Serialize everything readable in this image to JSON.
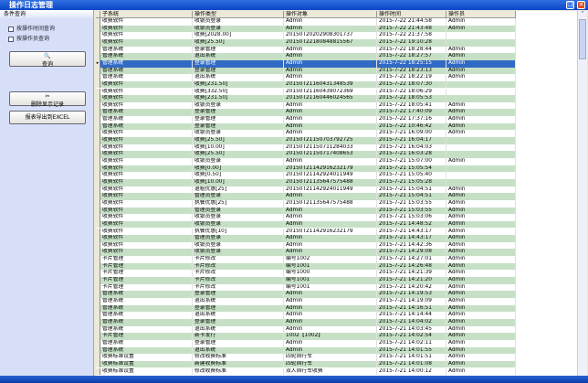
{
  "window": {
    "title": "操作日志管理",
    "restore_icon": "restore-icon",
    "close_icon": "close-icon"
  },
  "left": {
    "header": "条件查询",
    "filter_time": "按操作时间查询",
    "filter_operator": "按操作员查询",
    "query": "查询",
    "delete": "删除显示记录",
    "export": "报表导出到EXCEL"
  },
  "table": {
    "columns": [
      "子系统",
      "操作类型",
      "操作对象",
      "操作时间",
      "操作员"
    ],
    "selected_index": 6,
    "rows": [
      [
        "收费软件",
        "收银员登录",
        "Admin",
        "2015-7-22 21:44:58",
        "Admin"
      ],
      [
        "收费软件",
        "收银员登录",
        "Admin",
        "2015-7-22 21:43:48",
        "Admin"
      ],
      [
        "收费软件",
        "收费[2028.00]",
        "20150T20202908301737",
        "2015-7-22 21:37:58",
        ""
      ],
      [
        "收费软件",
        "收费[25.50]",
        "20150T22180848815567",
        "2015-7-22 19:10:28",
        ""
      ],
      [
        "管理系统",
        "登录管理",
        "Admin",
        "2015-7-22 18:28:44",
        "Admin"
      ],
      [
        "管理系统",
        "退出系统",
        "Admin",
        "2015-7-22 18:27:57",
        "Admin"
      ],
      [
        "管理系统",
        "登录管理",
        "Admin",
        "2015-7-22 18:25:15",
        "Admin"
      ],
      [
        "管理系统",
        "登录管理",
        "Admin",
        "2015-7-22 18:23:13",
        "Admin"
      ],
      [
        "管理系统",
        "退出系统",
        "Admin",
        "2015-7-22 18:22:19",
        "Admin"
      ],
      [
        "收费软件",
        "收费[231.50]",
        "20150T21160431348539",
        "2015-7-22 18:07:30",
        ""
      ],
      [
        "收费软件",
        "收费[332.50]",
        "20150T21160439072369",
        "2015-7-22 18:06:29",
        ""
      ],
      [
        "收费软件",
        "收费[231.50]",
        "20150T21160446024565",
        "2015-7-22 18:05:53",
        ""
      ],
      [
        "收费软件",
        "收银员登录",
        "Admin",
        "2015-7-22 18:05:41",
        "Admin"
      ],
      [
        "管理系统",
        "登录管理",
        "Admin",
        "2015-7-22 17:40:09",
        "Admin"
      ],
      [
        "管理系统",
        "登录管理",
        "Admin",
        "2015-7-22 17:37:16",
        "Admin"
      ],
      [
        "管理系统",
        "登录管理",
        "Admin",
        "2015-7-22 10:46:42",
        "Admin"
      ],
      [
        "收费软件",
        "收银员登录",
        "Admin",
        "2015-7-21 16:09:00",
        "Admin"
      ],
      [
        "收费软件",
        "收费[25.50]",
        "20150T21150703792725",
        "2015-7-21 16:04:17",
        ""
      ],
      [
        "收费软件",
        "收费[10.00]",
        "20150T21150711284033",
        "2015-7-21 16:04:03",
        ""
      ],
      [
        "收费软件",
        "收费[25.50]",
        "20150T21150717408653",
        "2015-7-21 16:03:28",
        ""
      ],
      [
        "收费软件",
        "收银员登录",
        "Admin",
        "2015-7-21 15:07:00",
        "Admin"
      ],
      [
        "收费软件",
        "收费[0.00]",
        "20150T21142916232179",
        "2015-7-21 15:05:54",
        ""
      ],
      [
        "收费软件",
        "收费[0.50]",
        "20150T21142924011949",
        "2015-7-21 15:05:40",
        ""
      ],
      [
        "收费软件",
        "收费[10.00]",
        "20150T21135647575488",
        "2015-7-21 15:05:28",
        ""
      ],
      [
        "收费软件",
        "退租优惠[25]",
        "20150T21142924011949",
        "2015-7-21 15:04:51",
        "Admin"
      ],
      [
        "收费软件",
        "管理员登录",
        "Admin",
        "2015-7-21 15:04:51",
        "Admin"
      ],
      [
        "收费软件",
        "执餐优惠[25]",
        "20150T21135647575488",
        "2015-7-21 15:03:55",
        "Admin"
      ],
      [
        "收费软件",
        "管理员登录",
        "Admin",
        "2015-7-21 15:03:55",
        "Admin"
      ],
      [
        "收费软件",
        "收银员登录",
        "Admin",
        "2015-7-21 15:03:06",
        "Admin"
      ],
      [
        "收费软件",
        "收银员登录",
        "Admin",
        "2015-7-21 14:48:52",
        "Admin"
      ],
      [
        "收费软件",
        "执餐优惠[10]",
        "20150T21142916232179",
        "2015-7-21 14:43:17",
        "Admin"
      ],
      [
        "收费软件",
        "管理员登录",
        "Admin",
        "2015-7-21 14:43:17",
        "Admin"
      ],
      [
        "收费软件",
        "收银员登录",
        "Admin",
        "2015-7-21 14:42:36",
        "Admin"
      ],
      [
        "收费软件",
        "收银员登录",
        "Admin",
        "2015-7-21 14:29:08",
        "Admin"
      ],
      [
        "卡片管理",
        "卡片修改",
        "编号1002",
        "2015-7-21 14:27:01",
        "Admin"
      ],
      [
        "卡片管理",
        "卡片修改",
        "编号1001",
        "2015-7-21 14:26:48",
        "Admin"
      ],
      [
        "卡片管理",
        "卡片修改",
        "编号1000",
        "2015-7-21 14:21:39",
        "Admin"
      ],
      [
        "卡片管理",
        "卡片修改",
        "编号1001",
        "2015-7-21 14:21:20",
        "Admin"
      ],
      [
        "卡片管理",
        "卡片修改",
        "编号1001",
        "2015-7-21 14:20:42",
        "Admin"
      ],
      [
        "管理系统",
        "登录管理",
        "Admin",
        "2015-7-21 14:19:53",
        "Admin"
      ],
      [
        "管理系统",
        "退出系统",
        "Admin",
        "2015-7-21 14:19:09",
        "Admin"
      ],
      [
        "管理系统",
        "登录管理",
        "Admin",
        "2015-7-21 14:16:51",
        "Admin"
      ],
      [
        "管理系统",
        "退出系统",
        "Admin",
        "2015-7-21 14:14:44",
        "Admin"
      ],
      [
        "管理系统",
        "登录管理",
        "Admin",
        "2015-7-21 14:04:02",
        "Admin"
      ],
      [
        "管理系统",
        "退出系统",
        "Admin",
        "2015-7-21 14:03:45",
        "Admin"
      ],
      [
        "卡片管理",
        "新卡发行",
        "1002【1002】",
        "2015-7-21 14:02:54",
        "Admin"
      ],
      [
        "管理系统",
        "登录管理",
        "Admin",
        "2015-7-21 14:02:11",
        "Admin"
      ],
      [
        "管理系统",
        "退出系统",
        "Admin",
        "2015-7-21 14:01:55",
        "Admin"
      ],
      [
        "收费标准设置",
        "修改收费标准",
        "四轮自行车",
        "2015-7-21 14:01:51",
        "Admin"
      ],
      [
        "收费标准设置",
        "新建收费标准",
        "四轮自行车",
        "2015-7-21 14:01:08",
        "Admin"
      ],
      [
        "收费标准设置",
        "修改收费标准",
        "双人自行车收费",
        "2015-7-21 14:00:12",
        "Admin"
      ]
    ]
  },
  "colors": {
    "title_bar": "#0a46c8",
    "alt_row": "#c6e0c6",
    "selected_row": "#316ac5"
  }
}
